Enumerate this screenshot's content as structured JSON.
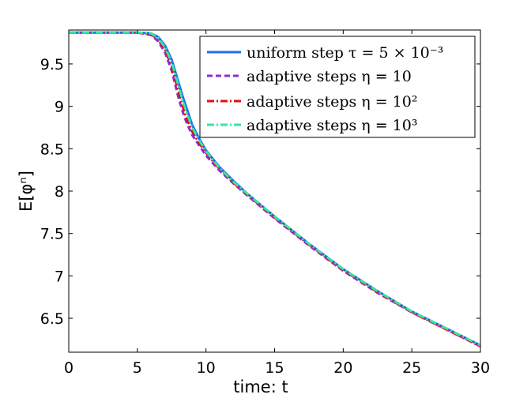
{
  "chart_data": {
    "type": "line",
    "xlabel": "time: t",
    "ylabel": "E[φⁿ]",
    "xlim": [
      0,
      30
    ],
    "ylim": [
      6.1,
      9.9
    ],
    "xticks": [
      "0",
      "5",
      "10",
      "15",
      "20",
      "25",
      "30"
    ],
    "yticks": [
      "6.5",
      "7",
      "7.5",
      "8",
      "8.5",
      "9",
      "9.5"
    ],
    "grid": false,
    "legend_position": "top-right",
    "series": [
      {
        "name": "uniform step τ = 5 × 10⁻³",
        "color": "#1a6ff5",
        "style": "solid",
        "x": [
          0,
          5,
          6,
          6.5,
          7,
          7.5,
          8,
          8.3,
          8.6,
          9,
          9.5,
          10,
          11,
          12,
          13,
          15,
          17.5,
          20,
          22.5,
          25,
          27.5,
          30
        ],
        "y": [
          9.87,
          9.87,
          9.86,
          9.82,
          9.72,
          9.55,
          9.28,
          9.12,
          8.97,
          8.78,
          8.62,
          8.48,
          8.28,
          8.12,
          7.97,
          7.7,
          7.38,
          7.08,
          6.82,
          6.58,
          6.38,
          6.18
        ]
      },
      {
        "name": "adaptive steps η = 10",
        "color": "#8b2be2",
        "style": "dashed",
        "x": [
          0,
          5,
          6,
          6.5,
          7,
          7.5,
          8,
          8.3,
          8.6,
          9,
          9.5,
          10,
          11,
          12,
          13,
          15,
          17.5,
          20,
          22.5,
          25,
          27.5,
          30
        ],
        "y": [
          9.87,
          9.87,
          9.84,
          9.77,
          9.64,
          9.42,
          9.1,
          8.94,
          8.8,
          8.66,
          8.54,
          8.42,
          8.24,
          8.09,
          7.95,
          7.68,
          7.36,
          7.06,
          6.8,
          6.57,
          6.37,
          6.17
        ]
      },
      {
        "name": "adaptive steps η = 10²",
        "color": "#e30f0f",
        "style": "dashdot",
        "x": [
          0,
          5,
          6,
          6.5,
          7,
          7.5,
          8,
          8.3,
          8.6,
          9,
          9.5,
          10,
          11,
          12,
          13,
          15,
          17.5,
          20,
          22.5,
          25,
          27.5,
          30
        ],
        "y": [
          9.87,
          9.87,
          9.85,
          9.79,
          9.67,
          9.47,
          9.17,
          9.0,
          8.85,
          8.7,
          8.57,
          8.45,
          8.26,
          8.1,
          7.96,
          7.69,
          7.37,
          7.07,
          6.81,
          6.57,
          6.37,
          6.17
        ]
      },
      {
        "name": "adaptive steps η = 10³",
        "color": "#33e8a0",
        "style": "dashdot",
        "x": [
          0,
          5,
          6,
          6.5,
          7,
          7.5,
          8,
          8.3,
          8.6,
          9,
          9.5,
          10,
          11,
          12,
          13,
          15,
          17.5,
          20,
          22.5,
          25,
          27.5,
          30
        ],
        "y": [
          9.87,
          9.87,
          9.86,
          9.81,
          9.7,
          9.52,
          9.24,
          9.07,
          8.92,
          8.75,
          8.6,
          8.47,
          8.27,
          8.11,
          7.97,
          7.7,
          7.38,
          7.08,
          6.82,
          6.58,
          6.38,
          6.18
        ]
      }
    ]
  }
}
